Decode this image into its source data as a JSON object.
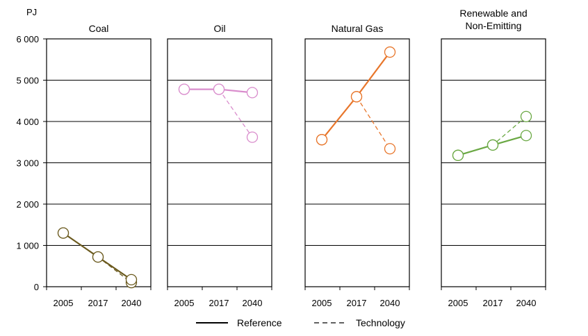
{
  "chart_data": {
    "type": "line",
    "unit_label": "PJ",
    "y_ticks": [
      "6 000",
      "5 000",
      "4 000",
      "3 000",
      "2 000",
      "1 000",
      "0"
    ],
    "ylim": [
      0,
      6000
    ],
    "x": [
      "2005",
      "2017",
      "2040"
    ],
    "legend": {
      "reference_label": "Reference",
      "technology_label": "Technology"
    },
    "panels": [
      {
        "title_lines": [
          "Coal"
        ],
        "color": "#6b5a1e",
        "reference": [
          1300,
          720,
          170
        ],
        "technology": [
          1300,
          720,
          100
        ]
      },
      {
        "title_lines": [
          "Oil"
        ],
        "color": "#d98ccc",
        "reference": [
          4780,
          4780,
          4700
        ],
        "technology": [
          4780,
          4780,
          3620
        ]
      },
      {
        "title_lines": [
          "Natural Gas"
        ],
        "color": "#e8762b",
        "reference": [
          3560,
          4600,
          5680
        ],
        "technology": [
          3560,
          4600,
          3340
        ]
      },
      {
        "title_lines": [
          "Renewable and",
          "Non-Emitting"
        ],
        "color": "#6aa843",
        "reference": [
          3180,
          3430,
          3660
        ],
        "technology": [
          3180,
          3430,
          4120
        ]
      }
    ]
  }
}
